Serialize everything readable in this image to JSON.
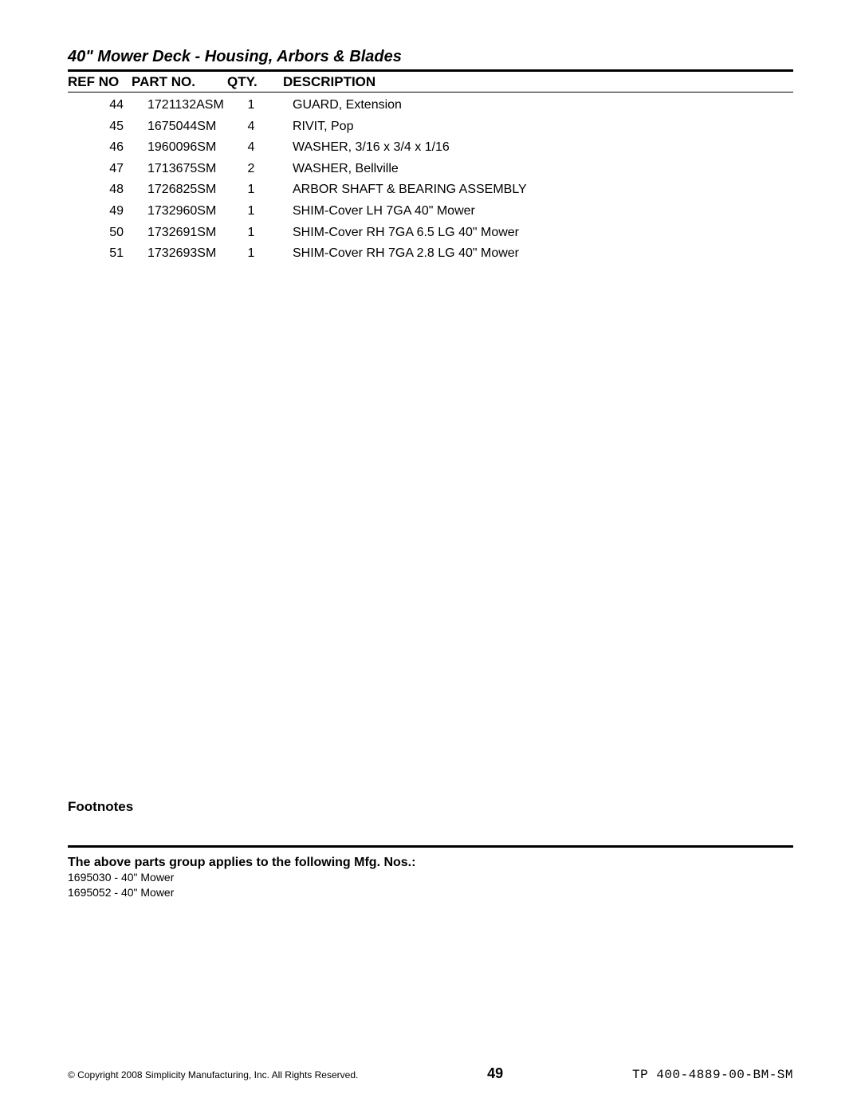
{
  "title": "40\" Mower Deck - Housing, Arbors & Blades",
  "columns": {
    "ref": "REF NO",
    "part": "PART NO.",
    "qty": "QTY.",
    "desc": "DESCRIPTION"
  },
  "rows": [
    {
      "ref": "44",
      "part": "1721132ASM",
      "qty": "1",
      "desc": "GUARD, Extension"
    },
    {
      "ref": "45",
      "part": "1675044SM",
      "qty": "4",
      "desc": "RIVIT, Pop"
    },
    {
      "ref": "46",
      "part": "1960096SM",
      "qty": "4",
      "desc": "WASHER, 3/16 x 3/4 x 1/16"
    },
    {
      "ref": "47",
      "part": "1713675SM",
      "qty": "2",
      "desc": "WASHER, Bellville"
    },
    {
      "ref": "48",
      "part": "1726825SM",
      "qty": "1",
      "desc": "ARBOR SHAFT & BEARING ASSEMBLY"
    },
    {
      "ref": "49",
      "part": "1732960SM",
      "qty": "1",
      "desc": "SHIM-Cover LH 7GA 40\" Mower"
    },
    {
      "ref": "50",
      "part": "1732691SM",
      "qty": "1",
      "desc": "SHIM-Cover RH 7GA 6.5 LG 40\" Mower"
    },
    {
      "ref": "51",
      "part": "1732693SM",
      "qty": "1",
      "desc": "SHIM-Cover RH 7GA 2.8 LG 40\" Mower"
    }
  ],
  "footnotes_label": "Footnotes",
  "applies_label": "The above parts group applies to the following Mfg. Nos.:",
  "applies_items": [
    "1695030 - 40\" Mower",
    "1695052 - 40\" Mower"
  ],
  "copyright": "© Copyright 2008 Simplicity Manufacturing, Inc. All Rights Reserved.",
  "page_number": "49",
  "doc_id": "TP 400-4889-00-BM-SM"
}
